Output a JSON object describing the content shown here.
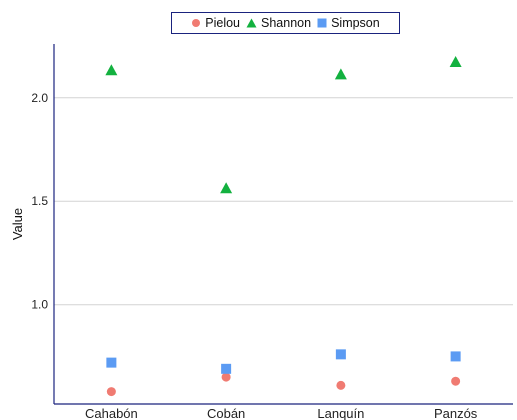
{
  "chart_data": {
    "type": "scatter",
    "categories": [
      "Cahabón",
      "Cobán",
      "Lanquín",
      "Panzós"
    ],
    "series": [
      {
        "name": "Pielou",
        "values": [
          0.58,
          0.65,
          0.61,
          0.63
        ],
        "color": "#f07b72",
        "marker": "circle"
      },
      {
        "name": "Shannon",
        "values": [
          2.13,
          1.56,
          2.11,
          2.17
        ],
        "color": "#13b13f",
        "marker": "triangle"
      },
      {
        "name": "Simpson",
        "values": [
          0.72,
          0.69,
          0.76,
          0.75
        ],
        "color": "#5b9bf3",
        "marker": "square"
      }
    ],
    "ylabel": "Value",
    "xlabel": "",
    "yticks": [
      1.0,
      1.5,
      2.0
    ],
    "ytick_labels": [
      "1.0",
      "1.5",
      "2.0"
    ],
    "ylim": [
      0.52,
      2.26
    ],
    "grid": "horizontal",
    "legend_position": "top"
  }
}
